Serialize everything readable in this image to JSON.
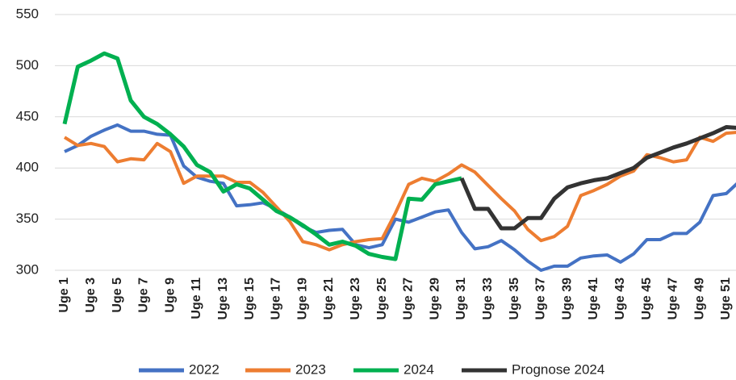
{
  "chart_data": {
    "type": "line",
    "categories": [
      "Uge 1",
      null,
      "Uge 3",
      null,
      "Uge 5",
      null,
      "Uge 7",
      null,
      "Uge 9",
      null,
      "Uge 11",
      null,
      "Uge 13",
      null,
      "Uge 15",
      null,
      "Uge 17",
      null,
      "Uge 19",
      null,
      "Uge 21",
      null,
      "Uge 23",
      null,
      "Uge 25",
      null,
      "Uge 27",
      null,
      "Uge 29",
      null,
      "Uge 31",
      null,
      "Uge 33",
      null,
      "Uge 35",
      null,
      "Uge 37",
      null,
      "Uge 39",
      null,
      "Uge 41",
      null,
      "Uge 43",
      null,
      "Uge 45",
      null,
      "Uge 47",
      null,
      "Uge 49",
      null,
      "Uge 51",
      null
    ],
    "series": [
      {
        "name": "2022",
        "color": "#4472c4",
        "values": [
          416,
          422,
          431,
          437,
          442,
          436,
          436,
          433,
          432,
          402,
          391,
          387,
          385,
          363,
          364,
          366,
          360,
          352,
          343,
          337,
          339,
          340,
          325,
          322,
          325,
          350,
          347,
          352,
          357,
          359,
          337,
          321,
          323,
          329,
          320,
          309,
          300,
          304,
          304,
          312,
          314,
          315,
          308,
          316,
          330,
          330,
          336,
          336,
          347,
          373,
          375,
          387
        ]
      },
      {
        "name": "2023",
        "color": "#ed7d31",
        "values": [
          430,
          422,
          424,
          421,
          406,
          409,
          408,
          424,
          416,
          385,
          392,
          392,
          392,
          386,
          386,
          376,
          362,
          348,
          328,
          325,
          320,
          325,
          328,
          330,
          331,
          356,
          384,
          390,
          387,
          394,
          403,
          396,
          383,
          370,
          358,
          340,
          329,
          333,
          343,
          373,
          378,
          384,
          392,
          397,
          413,
          410,
          406,
          408,
          430,
          426,
          434,
          435
        ]
      },
      {
        "name": "2024",
        "color": "#00b050",
        "values": [
          443,
          499,
          505,
          512,
          507,
          466,
          450,
          443,
          433,
          421,
          403,
          396,
          377,
          384,
          380,
          369,
          358,
          352,
          344,
          335,
          325,
          328,
          324,
          316,
          313,
          311,
          370,
          369,
          384,
          387,
          390,
          null,
          null,
          null,
          null,
          null,
          null,
          null,
          null,
          null,
          null,
          null,
          null,
          null,
          null,
          null,
          null,
          null,
          null,
          null,
          null,
          null
        ]
      },
      {
        "name": "Prognose 2024",
        "color": "#333333",
        "values": [
          null,
          null,
          null,
          null,
          null,
          null,
          null,
          null,
          null,
          null,
          null,
          null,
          null,
          null,
          null,
          null,
          null,
          null,
          null,
          null,
          null,
          null,
          null,
          null,
          null,
          null,
          null,
          null,
          null,
          null,
          390,
          360,
          360,
          341,
          341,
          351,
          351,
          370,
          381,
          385,
          388,
          390,
          395,
          400,
          410,
          415,
          420,
          424,
          429,
          434,
          440,
          439
        ]
      }
    ],
    "ylim": [
      300,
      550
    ],
    "yticks": [
      300,
      350,
      400,
      450,
      500,
      550
    ],
    "grid": true
  }
}
